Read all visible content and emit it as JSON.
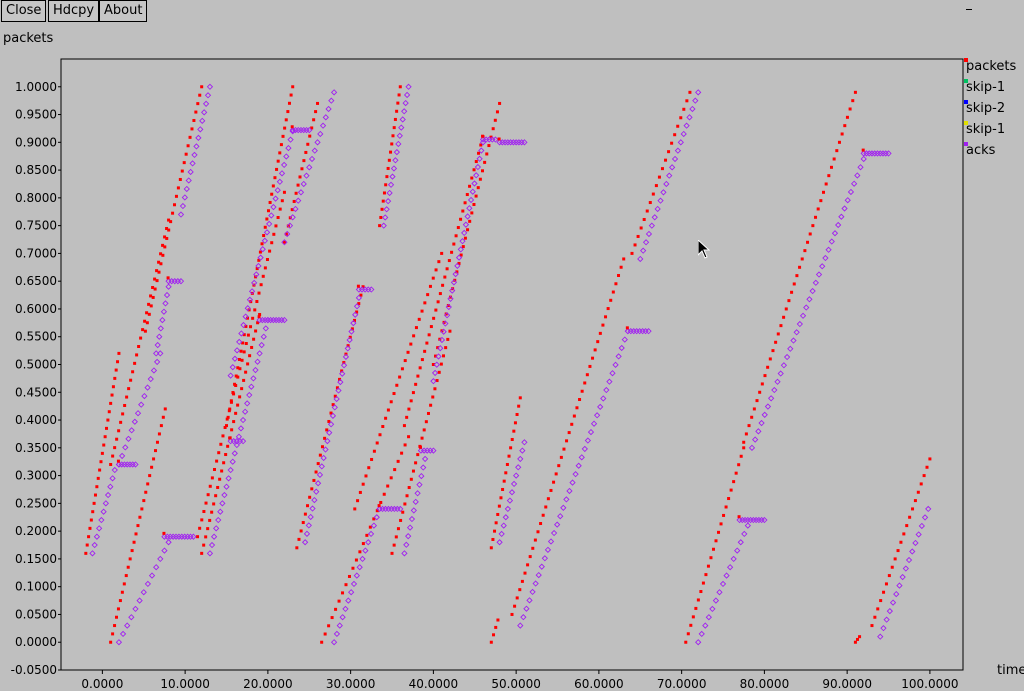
{
  "toolbar": {
    "close_label": "Close",
    "hdcpy_label": "Hdcpy",
    "about_label": "About"
  },
  "legend": [
    {
      "label": "packets",
      "color": "#ff0000"
    },
    {
      "label": "skip-1",
      "color": "#00c060"
    },
    {
      "label": "skip-2",
      "color": "#0000ff"
    },
    {
      "label": "skip-1",
      "color": "#e0e000"
    },
    {
      "label": "acks",
      "color": "#a020f0"
    }
  ],
  "chart_data": {
    "type": "scatter",
    "title": "",
    "xlabel": "time",
    "ylabel": "packets",
    "xlim": [
      -5,
      104
    ],
    "ylim": [
      -0.05,
      1.05
    ],
    "xticks": [
      "0.0000",
      "10.0000",
      "20.0000",
      "30.0000",
      "40.0000",
      "50.0000",
      "60.0000",
      "70.0000",
      "80.0000",
      "90.0000",
      "100.0000"
    ],
    "yticks": [
      "-0.0500",
      "0.0000",
      "0.0500",
      "0.1000",
      "0.1500",
      "0.2000",
      "0.2500",
      "0.3000",
      "0.3500",
      "0.4000",
      "0.4500",
      "0.5000",
      "0.5500",
      "0.6000",
      "0.6500",
      "0.7000",
      "0.7500",
      "0.8000",
      "0.8500",
      "0.9000",
      "0.9500",
      "1.0000"
    ],
    "grid": false,
    "legend_position": "right",
    "series": [
      {
        "name": "packets",
        "color": "#ff0000",
        "marker": "square",
        "segments": [
          {
            "x0": -2.0,
            "y0": 0.16,
            "x1": 2.0,
            "y1": 0.52
          },
          {
            "x0": 1.0,
            "y0": 0.0,
            "x1": 7.6,
            "y1": 0.42
          },
          {
            "x0": 1.0,
            "y0": 0.32,
            "x1": 8.0,
            "y1": 0.76
          },
          {
            "x0": 5.2,
            "y0": 0.56,
            "x1": 12.0,
            "y1": 1.0
          },
          {
            "x0": 12.0,
            "y0": 0.16,
            "x1": 19.0,
            "y1": 0.59
          },
          {
            "x0": 11.5,
            "y0": 0.19,
            "x1": 22.0,
            "y1": 0.81
          },
          {
            "x0": 15.0,
            "y0": 0.39,
            "x1": 23.0,
            "y1": 1.0
          },
          {
            "x0": 22.0,
            "y0": 0.72,
            "x1": 26.0,
            "y1": 0.97
          },
          {
            "x0": 23.5,
            "y0": 0.17,
            "x1": 31.5,
            "y1": 0.64
          },
          {
            "x0": 26.5,
            "y0": 0.0,
            "x1": 37.0,
            "y1": 0.37
          },
          {
            "x0": 30.5,
            "y0": 0.24,
            "x1": 41.0,
            "y1": 0.7
          },
          {
            "x0": 33.5,
            "y0": 0.75,
            "x1": 36.0,
            "y1": 1.0
          },
          {
            "x0": 35.0,
            "y0": 0.16,
            "x1": 42.0,
            "y1": 0.56
          },
          {
            "x0": 36.5,
            "y0": 0.39,
            "x1": 46.0,
            "y1": 0.91
          },
          {
            "x0": 40.0,
            "y0": 0.5,
            "x1": 48.0,
            "y1": 0.97
          },
          {
            "x0": 47.0,
            "y0": 0.0,
            "x1": 47.8,
            "y1": 0.04
          },
          {
            "x0": 47.0,
            "y0": 0.17,
            "x1": 50.5,
            "y1": 0.44
          },
          {
            "x0": 49.5,
            "y0": 0.05,
            "x1": 63.0,
            "y1": 0.69
          },
          {
            "x0": 64.0,
            "y0": 0.7,
            "x1": 71.0,
            "y1": 0.99
          },
          {
            "x0": 70.5,
            "y0": 0.0,
            "x1": 77.5,
            "y1": 0.35
          },
          {
            "x0": 77.5,
            "y0": 0.36,
            "x1": 91.0,
            "y1": 0.99
          },
          {
            "x0": 91.0,
            "y0": 0.0,
            "x1": 91.5,
            "y1": 0.01
          },
          {
            "x0": 93.0,
            "y0": 0.03,
            "x1": 100.0,
            "y1": 0.33
          }
        ]
      },
      {
        "name": "acks",
        "color": "#a020f0",
        "marker": "diamond",
        "segments": [
          {
            "x0": -1.2,
            "y0": 0.16,
            "x1": 1.5,
            "y1": 0.31
          },
          {
            "x0": 2.0,
            "y0": 0.32,
            "x1": 7.0,
            "y1": 0.52
          },
          {
            "x0": 2.0,
            "y0": 0.0,
            "x1": 8.0,
            "y1": 0.18
          },
          {
            "x0": 6.5,
            "y0": 0.52,
            "x1": 8.0,
            "y1": 0.64
          },
          {
            "x0": 9.5,
            "y0": 0.77,
            "x1": 13.0,
            "y1": 1.0
          },
          {
            "x0": 13.0,
            "y0": 0.16,
            "x1": 20.0,
            "y1": 0.58
          },
          {
            "x0": 15.5,
            "y0": 0.48,
            "x1": 23.0,
            "y1": 0.92
          },
          {
            "x0": 22.0,
            "y0": 0.72,
            "x1": 28.0,
            "y1": 0.99
          },
          {
            "x0": 24.5,
            "y0": 0.18,
            "x1": 31.0,
            "y1": 0.62
          },
          {
            "x0": 28.0,
            "y0": 0.0,
            "x1": 33.5,
            "y1": 0.24
          },
          {
            "x0": 34.0,
            "y0": 0.75,
            "x1": 37.0,
            "y1": 1.0
          },
          {
            "x0": 36.5,
            "y0": 0.16,
            "x1": 39.0,
            "y1": 0.33
          },
          {
            "x0": 40.0,
            "y0": 0.47,
            "x1": 46.0,
            "y1": 0.9
          },
          {
            "x0": 48.0,
            "y0": 0.18,
            "x1": 51.0,
            "y1": 0.36
          },
          {
            "x0": 50.5,
            "y0": 0.03,
            "x1": 63.5,
            "y1": 0.56
          },
          {
            "x0": 65.0,
            "y0": 0.69,
            "x1": 72.0,
            "y1": 0.99
          },
          {
            "x0": 72.0,
            "y0": 0.0,
            "x1": 78.0,
            "y1": 0.21
          },
          {
            "x0": 78.5,
            "y0": 0.35,
            "x1": 92.0,
            "y1": 0.87
          },
          {
            "x0": 94.0,
            "y0": 0.01,
            "x1": 99.8,
            "y1": 0.24
          }
        ],
        "plateaus": [
          {
            "x0": 2.0,
            "x1": 4.0,
            "y": 0.32
          },
          {
            "x0": 7.5,
            "x1": 11.0,
            "y": 0.19
          },
          {
            "x0": 8.0,
            "x1": 9.5,
            "y": 0.65
          },
          {
            "x0": 15.5,
            "x1": 17.0,
            "y": 0.362
          },
          {
            "x0": 19.0,
            "x1": 22.0,
            "y": 0.58
          },
          {
            "x0": 23.0,
            "x1": 25.0,
            "y": 0.922
          },
          {
            "x0": 31.0,
            "x1": 32.5,
            "y": 0.635
          },
          {
            "x0": 33.5,
            "x1": 36.0,
            "y": 0.24
          },
          {
            "x0": 38.5,
            "x1": 40.0,
            "y": 0.345
          },
          {
            "x0": 46.0,
            "x1": 47.5,
            "y": 0.905
          },
          {
            "x0": 48.0,
            "x1": 51.0,
            "y": 0.9
          },
          {
            "x0": 63.5,
            "x1": 66.0,
            "y": 0.56
          },
          {
            "x0": 77.0,
            "x1": 80.0,
            "y": 0.22
          },
          {
            "x0": 92.0,
            "x1": 95.0,
            "y": 0.88
          }
        ]
      }
    ]
  }
}
